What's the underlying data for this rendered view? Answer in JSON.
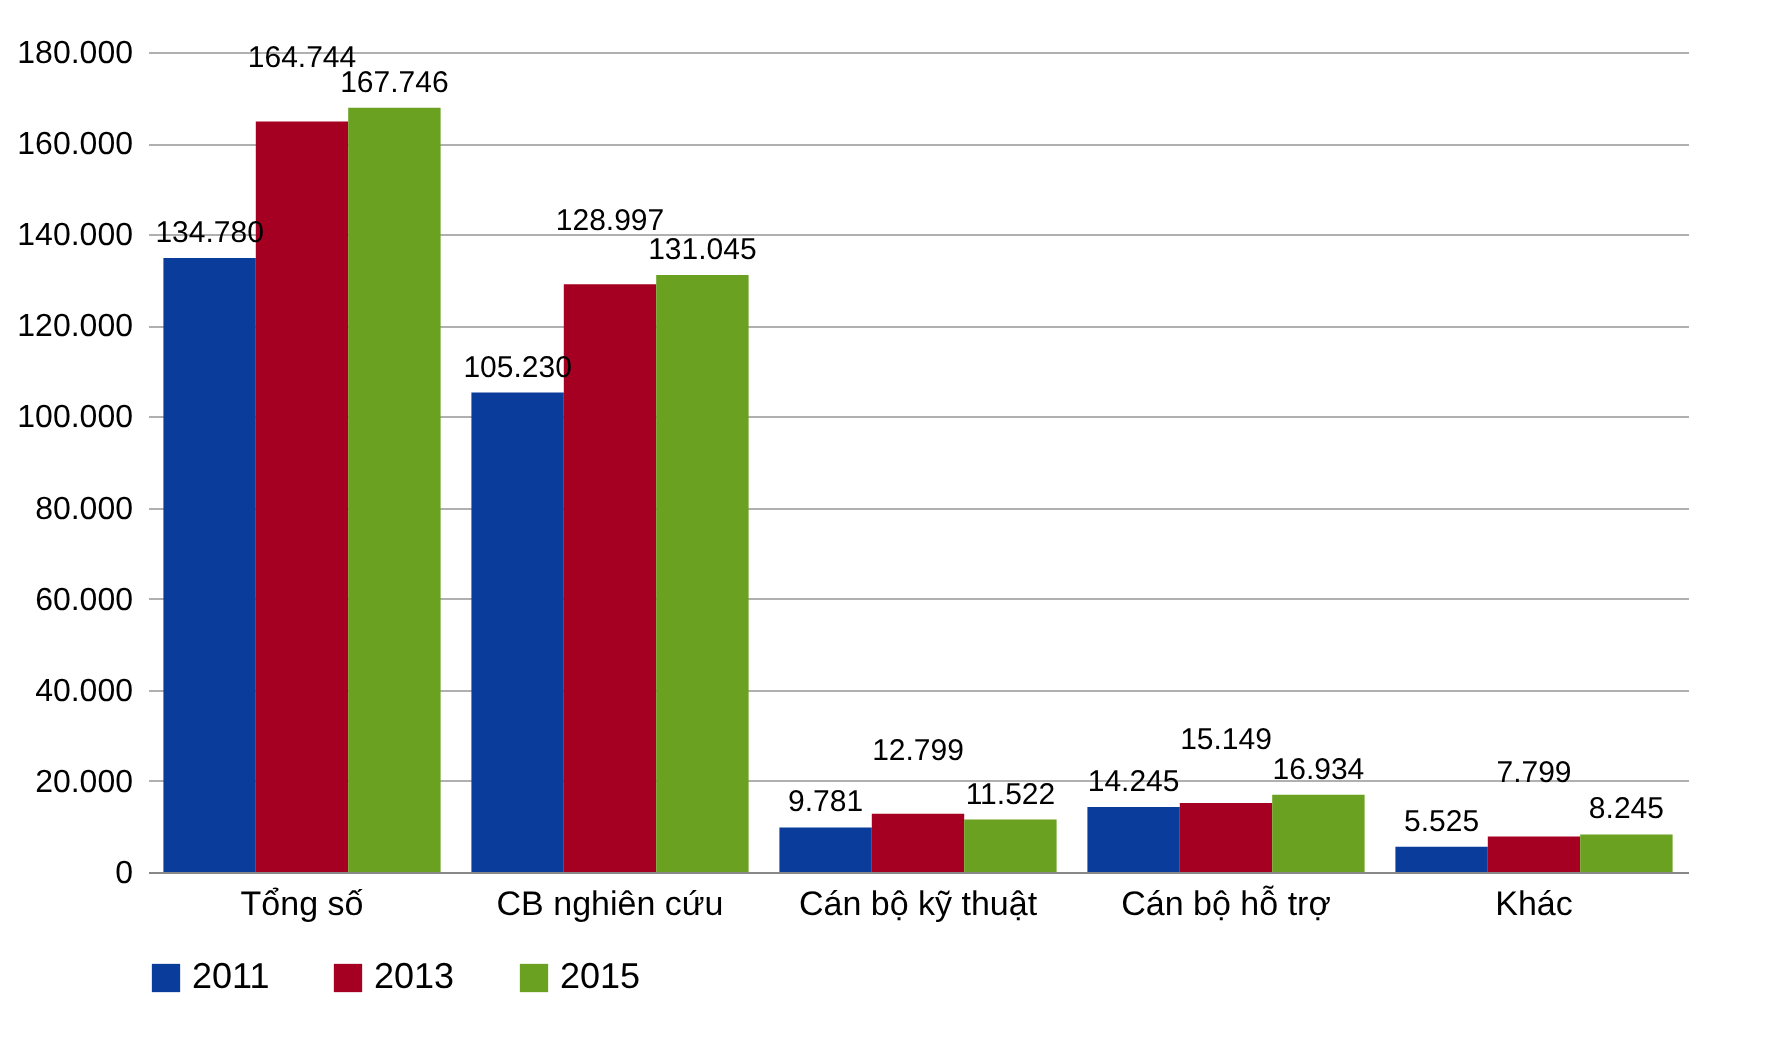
{
  "chart_data": {
    "type": "bar",
    "categories": [
      "Tổng số",
      "CB nghiên cứu",
      "Cán bộ kỹ thuật",
      "Cán bộ hỗ trợ",
      "Khác"
    ],
    "series": [
      {
        "name": "2011",
        "color": "#0a3c9c",
        "values": [
          134780,
          105230,
          9781,
          14245,
          5525
        ],
        "value_labels": [
          "134.780",
          "105.230",
          "9.781",
          "14.245",
          "5.525"
        ]
      },
      {
        "name": "2013",
        "color": "#a50021",
        "values": [
          164744,
          128997,
          12799,
          15149,
          7799
        ],
        "value_labels": [
          "164.744",
          "128.997",
          "12.799",
          "15.149",
          "7.799"
        ]
      },
      {
        "name": "2015",
        "color": "#6aa121",
        "values": [
          167746,
          131045,
          11522,
          16934,
          8245
        ],
        "value_labels": [
          "167.746",
          "131.045",
          "11.522",
          "16.934",
          "8.245"
        ]
      }
    ],
    "ylim": [
      0,
      180000
    ],
    "yticks": [
      {
        "value": 0,
        "label": "0"
      },
      {
        "value": 20000,
        "label": "20.000"
      },
      {
        "value": 40000,
        "label": "40.000"
      },
      {
        "value": 60000,
        "label": "60.000"
      },
      {
        "value": 80000,
        "label": "80.000"
      },
      {
        "value": 100000,
        "label": "100.000"
      },
      {
        "value": 120000,
        "label": "120.000"
      },
      {
        "value": 140000,
        "label": "140.000"
      },
      {
        "value": 160000,
        "label": "160.000"
      },
      {
        "value": 180000,
        "label": "180.000"
      }
    ],
    "grid": "y",
    "legend": "bottom"
  }
}
